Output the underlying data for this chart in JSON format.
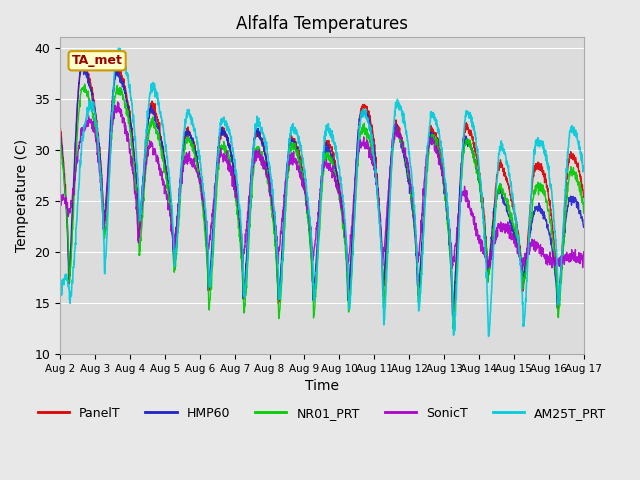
{
  "title": "Alfalfa Temperatures",
  "xlabel": "Time",
  "ylabel": "Temperature (C)",
  "ylim": [
    10,
    41
  ],
  "n_days": 15,
  "background_color": "#e8e8e8",
  "plot_bg_color": "#dcdcdc",
  "annotation_text": "TA_met",
  "annotation_bg": "#ffffcc",
  "annotation_border": "#cc9900",
  "annotation_text_color": "#990000",
  "series": {
    "PanelT": {
      "color": "#dd0000",
      "lw": 1.0
    },
    "HMP60": {
      "color": "#2222cc",
      "lw": 1.0
    },
    "NR01_PRT": {
      "color": "#00cc00",
      "lw": 1.0
    },
    "SonicT": {
      "color": "#aa00cc",
      "lw": 1.0
    },
    "AM25T_PRT": {
      "color": "#00ccdd",
      "lw": 1.2
    }
  },
  "tick_labels": [
    "Aug 2",
    "Aug 3",
    "Aug 4",
    "Aug 5",
    "Aug 6",
    "Aug 7",
    "Aug 8",
    "Aug 9",
    "Aug 10",
    "Aug 11",
    "Aug 12",
    "Aug 13",
    "Aug 14",
    "Aug 15",
    "Aug 16",
    "Aug 17"
  ],
  "yticks": [
    10,
    15,
    20,
    25,
    30,
    35,
    40
  ],
  "grid_color": "#ffffff",
  "spine_color": "#aaaaaa"
}
